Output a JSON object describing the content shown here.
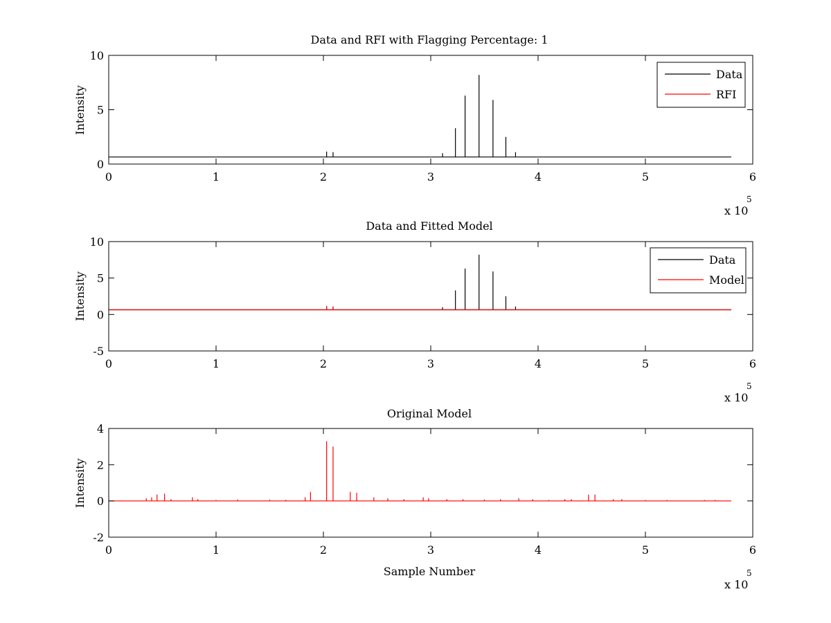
{
  "chart_data": [
    {
      "type": "line",
      "title": "Data and RFI with Flagging Percentage: 1",
      "xlabel": "",
      "ylabel": "Intensity",
      "xlim": [
        0,
        600000
      ],
      "ylim": [
        0,
        10
      ],
      "xticks": [
        0,
        1,
        2,
        3,
        4,
        5,
        6
      ],
      "yticks": [
        0,
        5,
        10
      ],
      "x_multiplier": {
        "base": "x 10",
        "exponent": "5"
      },
      "legend": {
        "position": "top-right",
        "entries": [
          "Data",
          "RFI"
        ]
      },
      "series": [
        {
          "name": "Data",
          "color": "#000000",
          "baseline": 0.65,
          "spikes": [
            [
              203000,
              1.15
            ],
            [
              209000,
              1.1
            ],
            [
              311000,
              1.0
            ],
            [
              323000,
              3.3
            ],
            [
              332000,
              6.3
            ],
            [
              345000,
              8.2
            ],
            [
              358000,
              5.9
            ],
            [
              370000,
              2.5
            ],
            [
              379000,
              1.1
            ]
          ]
        },
        {
          "name": "RFI",
          "color": "#ff0000",
          "baseline": 0.65,
          "spikes": []
        }
      ]
    },
    {
      "type": "line",
      "title": "Data and Fitted Model",
      "xlabel": "",
      "ylabel": "Intensity",
      "xlim": [
        0,
        600000
      ],
      "ylim": [
        -5,
        10
      ],
      "xticks": [
        0,
        1,
        2,
        3,
        4,
        5,
        6
      ],
      "yticks": [
        -5,
        0,
        5,
        10
      ],
      "x_multiplier": {
        "base": "x 10",
        "exponent": "5"
      },
      "legend": {
        "position": "top-right",
        "entries": [
          "Data",
          "Model"
        ]
      },
      "series": [
        {
          "name": "Data",
          "color": "#000000",
          "baseline": 0.65,
          "spikes": [
            [
              203000,
              1.15
            ],
            [
              209000,
              1.1
            ],
            [
              311000,
              1.0
            ],
            [
              323000,
              3.3
            ],
            [
              332000,
              6.3
            ],
            [
              345000,
              8.2
            ],
            [
              358000,
              5.9
            ],
            [
              370000,
              2.5
            ],
            [
              379000,
              1.1
            ]
          ]
        },
        {
          "name": "Model",
          "color": "#ff0000",
          "baseline": 0.65,
          "spikes": [
            [
              203000,
              1.1
            ],
            [
              209000,
              1.05
            ]
          ]
        }
      ]
    },
    {
      "type": "line",
      "title": "Original Model",
      "xlabel": "Sample Number",
      "ylabel": "Intensity",
      "xlim": [
        0,
        600000
      ],
      "ylim": [
        -2,
        4
      ],
      "xticks": [
        0,
        1,
        2,
        3,
        4,
        5,
        6
      ],
      "yticks": [
        -2,
        0,
        2,
        4
      ],
      "x_multiplier": {
        "base": "x 10",
        "exponent": "5"
      },
      "series": [
        {
          "name": "",
          "color": "#ff0000",
          "baseline": 0,
          "spikes": [
            [
              35000,
              0.15
            ],
            [
              40000,
              0.2
            ],
            [
              45000,
              0.35
            ],
            [
              52000,
              0.4
            ],
            [
              58000,
              0.1
            ],
            [
              78000,
              0.2
            ],
            [
              83000,
              0.1
            ],
            [
              100000,
              0.05
            ],
            [
              120000,
              0.08
            ],
            [
              150000,
              0.07
            ],
            [
              165000,
              0.06
            ],
            [
              183000,
              0.2
            ],
            [
              188000,
              0.5
            ],
            [
              203000,
              3.3
            ],
            [
              209000,
              3.0
            ],
            [
              225000,
              0.5
            ],
            [
              231000,
              0.45
            ],
            [
              247000,
              0.2
            ],
            [
              260000,
              0.15
            ],
            [
              275000,
              0.1
            ],
            [
              293000,
              0.2
            ],
            [
              298000,
              0.15
            ],
            [
              315000,
              0.1
            ],
            [
              330000,
              0.1
            ],
            [
              350000,
              0.08
            ],
            [
              365000,
              0.1
            ],
            [
              382000,
              0.15
            ],
            [
              395000,
              0.1
            ],
            [
              410000,
              0.05
            ],
            [
              425000,
              0.1
            ],
            [
              431000,
              0.1
            ],
            [
              447000,
              0.35
            ],
            [
              453000,
              0.35
            ],
            [
              470000,
              0.1
            ],
            [
              478000,
              0.1
            ],
            [
              500000,
              0.05
            ],
            [
              520000,
              0.05
            ],
            [
              555000,
              0.05
            ],
            [
              565000,
              0.05
            ]
          ]
        }
      ]
    }
  ]
}
